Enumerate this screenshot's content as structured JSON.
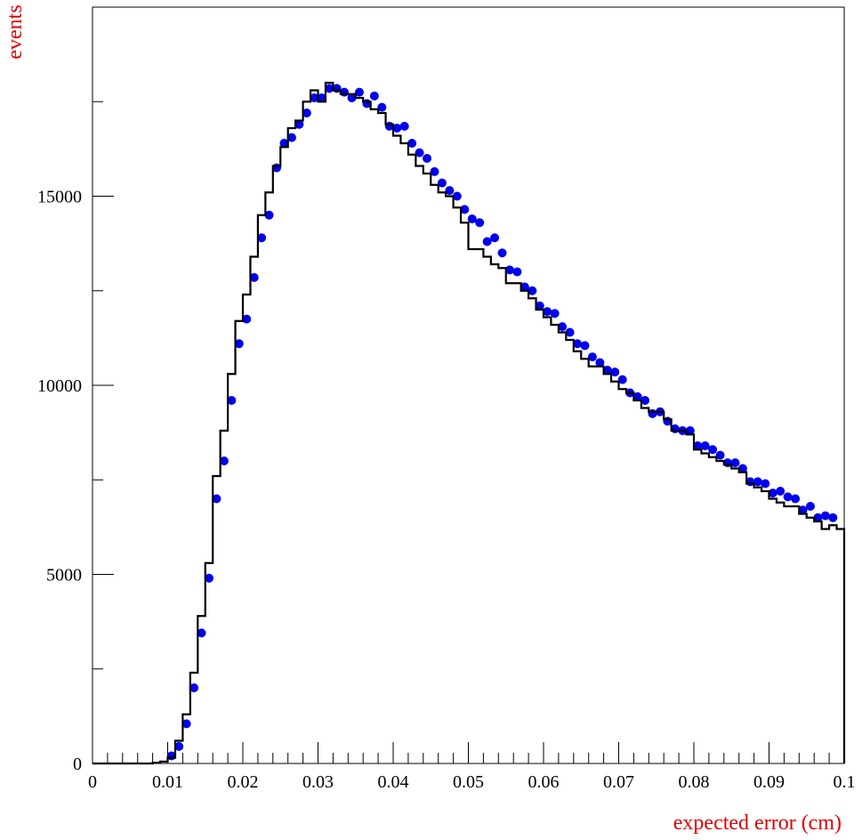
{
  "chart_data": {
    "type": "histogram",
    "title": "",
    "xlabel": "expected error (cm)",
    "ylabel": "events",
    "xlim": [
      0,
      0.1
    ],
    "ylim": [
      0,
      20000
    ],
    "x_ticks": [
      0,
      0.01,
      0.02,
      0.03,
      0.04,
      0.05,
      0.06,
      0.07,
      0.08,
      0.09,
      0.1
    ],
    "x_tick_labels": [
      "0",
      "0.01",
      "0.02",
      "0.03",
      "0.04",
      "0.05",
      "0.06",
      "0.07",
      "0.08",
      "0.09",
      "0.1"
    ],
    "y_ticks": [
      0,
      5000,
      10000,
      15000
    ],
    "y_tick_labels": [
      "0",
      "5000",
      "10000",
      "15000"
    ],
    "grid": false,
    "series": [
      {
        "style": "step-histogram",
        "color": "#000000",
        "bin_width": 0.001,
        "bin_starts": [
          0.0,
          0.001,
          0.002,
          0.003,
          0.004,
          0.005,
          0.006,
          0.007,
          0.008,
          0.009,
          0.01,
          0.011,
          0.012,
          0.013,
          0.014,
          0.015,
          0.016,
          0.017,
          0.018,
          0.019,
          0.02,
          0.021,
          0.022,
          0.023,
          0.024,
          0.025,
          0.026,
          0.027,
          0.028,
          0.029,
          0.03,
          0.031,
          0.032,
          0.033,
          0.034,
          0.035,
          0.036,
          0.037,
          0.038,
          0.039,
          0.04,
          0.041,
          0.042,
          0.043,
          0.044,
          0.045,
          0.046,
          0.047,
          0.048,
          0.049,
          0.05,
          0.051,
          0.052,
          0.053,
          0.054,
          0.055,
          0.056,
          0.057,
          0.058,
          0.059,
          0.06,
          0.061,
          0.062,
          0.063,
          0.064,
          0.065,
          0.066,
          0.067,
          0.068,
          0.069,
          0.07,
          0.071,
          0.072,
          0.073,
          0.074,
          0.075,
          0.076,
          0.077,
          0.078,
          0.079,
          0.08,
          0.081,
          0.082,
          0.083,
          0.084,
          0.085,
          0.086,
          0.087,
          0.088,
          0.089,
          0.09,
          0.091,
          0.092,
          0.093,
          0.094,
          0.095,
          0.096,
          0.097,
          0.098,
          0.099
        ],
        "values": [
          0,
          0,
          0,
          0,
          0,
          0,
          0,
          0,
          20,
          50,
          150,
          600,
          1300,
          2400,
          3900,
          5300,
          7600,
          8800,
          10300,
          11700,
          12400,
          13400,
          14500,
          15100,
          15800,
          16300,
          16800,
          17000,
          17500,
          17800,
          17500,
          18000,
          17800,
          17700,
          17700,
          17600,
          17500,
          17300,
          17200,
          16900,
          16600,
          16400,
          16100,
          15800,
          15600,
          15300,
          15100,
          15000,
          14700,
          14300,
          13600,
          13600,
          13400,
          13200,
          13100,
          12700,
          12700,
          12500,
          12300,
          12000,
          11800,
          11600,
          11400,
          11200,
          10900,
          10700,
          10500,
          10500,
          10300,
          10100,
          9900,
          9800,
          9600,
          9400,
          9300,
          9300,
          9100,
          8800,
          8800,
          8700,
          8300,
          8200,
          8100,
          8000,
          7900,
          7800,
          7700,
          7400,
          7300,
          7200,
          7000,
          6900,
          6800,
          6800,
          6600,
          6500,
          6400,
          6200,
          6300,
          6200
        ]
      },
      {
        "style": "markers",
        "color": "#0000ee",
        "x": [
          0.0105,
          0.0115,
          0.0125,
          0.0135,
          0.0145,
          0.0155,
          0.0165,
          0.0175,
          0.0185,
          0.0195,
          0.0205,
          0.0215,
          0.0225,
          0.0235,
          0.0245,
          0.0255,
          0.0265,
          0.0275,
          0.0285,
          0.0295,
          0.0305,
          0.0315,
          0.0325,
          0.0335,
          0.0345,
          0.0355,
          0.0365,
          0.0375,
          0.0385,
          0.0395,
          0.0405,
          0.0415,
          0.0425,
          0.0435,
          0.0445,
          0.0455,
          0.0465,
          0.0475,
          0.0485,
          0.0495,
          0.0505,
          0.0515,
          0.0525,
          0.0535,
          0.0545,
          0.0555,
          0.0565,
          0.0575,
          0.0585,
          0.0595,
          0.0605,
          0.0615,
          0.0625,
          0.0635,
          0.0645,
          0.0655,
          0.0665,
          0.0675,
          0.0685,
          0.0695,
          0.0705,
          0.0715,
          0.0725,
          0.0735,
          0.0745,
          0.0755,
          0.0765,
          0.0775,
          0.0785,
          0.0795,
          0.0805,
          0.0815,
          0.0825,
          0.0835,
          0.0845,
          0.0855,
          0.0865,
          0.0875,
          0.0885,
          0.0895,
          0.0905,
          0.0915,
          0.0925,
          0.0935,
          0.0945,
          0.0955,
          0.0965,
          0.0975,
          0.0985
        ],
        "y": [
          200,
          450,
          1050,
          2000,
          3450,
          4900,
          7000,
          8000,
          9600,
          11100,
          11750,
          12850,
          13900,
          14500,
          15750,
          16400,
          16550,
          16900,
          17200,
          17600,
          17600,
          17850,
          17850,
          17750,
          17600,
          17750,
          17450,
          17650,
          17350,
          16850,
          16800,
          16850,
          16400,
          16150,
          16000,
          15650,
          15350,
          15150,
          15000,
          14650,
          14400,
          14300,
          13800,
          13900,
          13500,
          13050,
          13000,
          12600,
          12500,
          12100,
          11950,
          11900,
          11550,
          11400,
          11100,
          11050,
          10750,
          10600,
          10400,
          10350,
          10150,
          9800,
          9700,
          9600,
          9250,
          9300,
          9050,
          8850,
          8800,
          8800,
          8400,
          8400,
          8300,
          8150,
          7950,
          7950,
          7800,
          7450,
          7450,
          7400,
          7150,
          7200,
          7050,
          7000,
          6700,
          6800,
          6500,
          6550,
          6500
        ]
      }
    ]
  }
}
